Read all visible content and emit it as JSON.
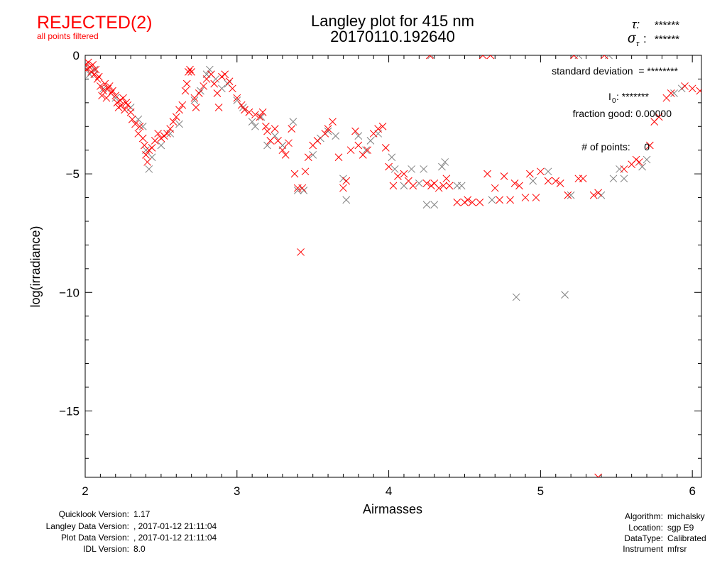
{
  "header": {
    "status": "REJECTED(2)",
    "status_note": "all points filtered",
    "tau_label": "τ:",
    "tau_value": "******",
    "sigma_tau_label": "σ",
    "sigma_tau_sub": "τ",
    "sigma_tau_value": "******"
  },
  "annotations": {
    "std_dev": "standard deviation  = ********",
    "i0_label": "I",
    "i0_sub": "0",
    "i0_value": ": *******",
    "fraction_good": "fraction good: 0.00000",
    "num_points": "# of points:     0"
  },
  "footer": {
    "left_labels": [
      "Quicklook Version:",
      "Langley Data Version:",
      "Plot Data Version:",
      "IDL Version:"
    ],
    "left_values": [
      "1.17",
      ", 2017-01-12 21:11:04",
      ", 2017-01-12 21:11:04",
      "8.0"
    ],
    "right_labels": [
      "Algorithm:",
      "Location:",
      "DataType:",
      "Instrument"
    ],
    "right_values": [
      "michalsky",
      "sgp E9",
      "Calibrated",
      "mfrsr"
    ]
  },
  "colors": {
    "rejected": "#ff0000",
    "other": "#808080",
    "axis": "#000000"
  },
  "chart_data": {
    "type": "scatter",
    "title": "Langley plot for 415 nm",
    "subtitle": "20170110.192640",
    "xlabel": "Airmasses",
    "ylabel": "log(irradiance)",
    "xlim": [
      2,
      6.06
    ],
    "ylim": [
      -17.8,
      0
    ],
    "xticks": [
      2,
      3,
      4,
      5,
      6
    ],
    "xtick_labels": [
      "2",
      "3",
      "4",
      "5",
      "6"
    ],
    "yticks": [
      0,
      -5,
      -10,
      -15
    ],
    "ytick_labels": [
      "0",
      "−5",
      "−10",
      "−15"
    ],
    "grid": false,
    "marker": "x",
    "series": [
      {
        "name": "gray points",
        "color": "#808080",
        "points": [
          [
            2.0,
            -0.5
          ],
          [
            2.03,
            -0.8
          ],
          [
            2.06,
            -0.6
          ],
          [
            2.12,
            -1.4
          ],
          [
            2.2,
            -1.8
          ],
          [
            2.3,
            -2.2
          ],
          [
            2.35,
            -2.7
          ],
          [
            2.38,
            -3.0
          ],
          [
            2.4,
            -4.0
          ],
          [
            2.42,
            -4.8
          ],
          [
            2.44,
            -4.3
          ],
          [
            2.5,
            -3.8
          ],
          [
            2.56,
            -3.3
          ],
          [
            2.62,
            -2.9
          ],
          [
            2.72,
            -1.9
          ],
          [
            2.76,
            -1.5
          ],
          [
            2.8,
            -0.8
          ],
          [
            2.82,
            -0.6
          ],
          [
            2.86,
            -1.0
          ],
          [
            2.9,
            -1.4
          ],
          [
            2.94,
            -1.2
          ],
          [
            3.0,
            -1.9
          ],
          [
            3.04,
            -2.2
          ],
          [
            3.1,
            -2.8
          ],
          [
            3.12,
            -3.0
          ],
          [
            3.16,
            -2.6
          ],
          [
            3.2,
            -3.8
          ],
          [
            3.25,
            -3.4
          ],
          [
            3.3,
            -3.8
          ],
          [
            3.37,
            -2.8
          ],
          [
            3.4,
            -5.7
          ],
          [
            3.44,
            -5.7
          ],
          [
            3.5,
            -4.2
          ],
          [
            3.55,
            -3.5
          ],
          [
            3.6,
            -3.2
          ],
          [
            3.65,
            -3.4
          ],
          [
            3.7,
            -5.2
          ],
          [
            3.72,
            -6.1
          ],
          [
            3.8,
            -3.4
          ],
          [
            3.85,
            -4.0
          ],
          [
            3.88,
            -3.6
          ],
          [
            3.93,
            -3.3
          ],
          [
            4.02,
            -4.3
          ],
          [
            4.04,
            -4.8
          ],
          [
            4.1,
            -5.5
          ],
          [
            4.15,
            -4.8
          ],
          [
            4.2,
            -5.4
          ],
          [
            4.23,
            -4.8
          ],
          [
            4.25,
            -6.3
          ],
          [
            4.3,
            -6.3
          ],
          [
            4.35,
            -4.7
          ],
          [
            4.37,
            -4.5
          ],
          [
            4.45,
            -5.5
          ],
          [
            4.48,
            -5.5
          ],
          [
            4.68,
            -6.1
          ],
          [
            4.84,
            -10.2
          ],
          [
            4.95,
            -5.3
          ],
          [
            5.05,
            -4.9
          ],
          [
            5.16,
            -10.1
          ],
          [
            5.2,
            -5.9
          ],
          [
            5.4,
            -5.9
          ],
          [
            5.48,
            -5.2
          ],
          [
            5.52,
            -4.8
          ],
          [
            5.55,
            -5.2
          ],
          [
            5.67,
            -4.7
          ],
          [
            5.7,
            -4.4
          ],
          [
            5.88,
            -1.6
          ],
          [
            5.93,
            -1.4
          ],
          [
            4.28,
            0
          ],
          [
            5.25,
            0
          ],
          [
            5.45,
            0
          ]
        ]
      },
      {
        "name": "rejected points",
        "color": "#ff0000",
        "points": [
          [
            2.0,
            -0.4
          ],
          [
            2.01,
            -0.6
          ],
          [
            2.02,
            -0.3
          ],
          [
            2.03,
            -0.5
          ],
          [
            2.04,
            -0.7
          ],
          [
            2.05,
            -0.4
          ],
          [
            2.06,
            -0.8
          ],
          [
            2.07,
            -0.6
          ],
          [
            2.08,
            -1.0
          ],
          [
            2.09,
            -0.9
          ],
          [
            2.1,
            -1.3
          ],
          [
            2.11,
            -1.7
          ],
          [
            2.12,
            -1.5
          ],
          [
            2.13,
            -1.2
          ],
          [
            2.14,
            -1.8
          ],
          [
            2.15,
            -1.4
          ],
          [
            2.16,
            -1.3
          ],
          [
            2.17,
            -1.6
          ],
          [
            2.18,
            -1.5
          ],
          [
            2.2,
            -1.7
          ],
          [
            2.21,
            -2.0
          ],
          [
            2.22,
            -2.2
          ],
          [
            2.23,
            -1.9
          ],
          [
            2.24,
            -2.1
          ],
          [
            2.25,
            -1.8
          ],
          [
            2.26,
            -2.3
          ],
          [
            2.27,
            -2.0
          ],
          [
            2.28,
            -2.1
          ],
          [
            2.3,
            -2.4
          ],
          [
            2.31,
            -2.7
          ],
          [
            2.33,
            -2.9
          ],
          [
            2.35,
            -3.3
          ],
          [
            2.36,
            -3.0
          ],
          [
            2.38,
            -3.5
          ],
          [
            2.39,
            -3.8
          ],
          [
            2.4,
            -4.2
          ],
          [
            2.41,
            -4.5
          ],
          [
            2.42,
            -4.0
          ],
          [
            2.44,
            -3.9
          ],
          [
            2.46,
            -3.6
          ],
          [
            2.48,
            -3.3
          ],
          [
            2.5,
            -3.5
          ],
          [
            2.52,
            -3.4
          ],
          [
            2.54,
            -3.3
          ],
          [
            2.56,
            -3.1
          ],
          [
            2.58,
            -2.8
          ],
          [
            2.6,
            -2.6
          ],
          [
            2.62,
            -2.3
          ],
          [
            2.64,
            -2.1
          ],
          [
            2.66,
            -1.5
          ],
          [
            2.67,
            -1.2
          ],
          [
            2.68,
            -0.7
          ],
          [
            2.69,
            -0.6
          ],
          [
            2.7,
            -0.7
          ],
          [
            2.72,
            -1.8
          ],
          [
            2.73,
            -2.2
          ],
          [
            2.75,
            -1.6
          ],
          [
            2.78,
            -1.3
          ],
          [
            2.8,
            -1.0
          ],
          [
            2.83,
            -0.8
          ],
          [
            2.85,
            -1.2
          ],
          [
            2.87,
            -1.6
          ],
          [
            2.88,
            -2.2
          ],
          [
            2.9,
            -0.9
          ],
          [
            2.92,
            -0.8
          ],
          [
            2.95,
            -1.1
          ],
          [
            2.97,
            -1.4
          ],
          [
            3.0,
            -1.8
          ],
          [
            3.03,
            -2.1
          ],
          [
            3.05,
            -2.3
          ],
          [
            3.08,
            -2.4
          ],
          [
            3.12,
            -2.5
          ],
          [
            3.15,
            -2.6
          ],
          [
            3.17,
            -2.4
          ],
          [
            3.19,
            -3.0
          ],
          [
            3.2,
            -3.2
          ],
          [
            3.22,
            -3.6
          ],
          [
            3.25,
            -3.1
          ],
          [
            3.27,
            -3.6
          ],
          [
            3.3,
            -4.0
          ],
          [
            3.32,
            -4.2
          ],
          [
            3.34,
            -3.7
          ],
          [
            3.36,
            -3.1
          ],
          [
            3.38,
            -5.0
          ],
          [
            3.4,
            -5.6
          ],
          [
            3.42,
            -8.3
          ],
          [
            3.43,
            -5.6
          ],
          [
            3.45,
            -4.9
          ],
          [
            3.47,
            -4.3
          ],
          [
            3.5,
            -3.8
          ],
          [
            3.53,
            -3.6
          ],
          [
            3.58,
            -3.3
          ],
          [
            3.6,
            -3.1
          ],
          [
            3.63,
            -2.8
          ],
          [
            3.67,
            -4.3
          ],
          [
            3.7,
            -5.6
          ],
          [
            3.72,
            -5.3
          ],
          [
            3.75,
            -4.0
          ],
          [
            3.78,
            -3.2
          ],
          [
            3.8,
            -3.8
          ],
          [
            3.83,
            -4.2
          ],
          [
            3.86,
            -4.0
          ],
          [
            3.9,
            -3.3
          ],
          [
            3.93,
            -3.1
          ],
          [
            3.96,
            -3.0
          ],
          [
            3.98,
            -3.9
          ],
          [
            4.0,
            -4.7
          ],
          [
            4.03,
            -5.5
          ],
          [
            4.06,
            -5.1
          ],
          [
            4.1,
            -5.0
          ],
          [
            4.13,
            -5.3
          ],
          [
            4.16,
            -5.5
          ],
          [
            4.25,
            -5.4
          ],
          [
            4.28,
            -5.5
          ],
          [
            4.3,
            -5.4
          ],
          [
            4.33,
            -5.6
          ],
          [
            4.36,
            -5.5
          ],
          [
            4.38,
            -5.2
          ],
          [
            4.4,
            -5.5
          ],
          [
            4.45,
            -6.2
          ],
          [
            4.5,
            -6.2
          ],
          [
            4.52,
            -6.1
          ],
          [
            4.55,
            -6.2
          ],
          [
            4.6,
            -6.2
          ],
          [
            4.65,
            -5.0
          ],
          [
            4.7,
            -5.6
          ],
          [
            4.73,
            -6.1
          ],
          [
            4.76,
            -5.1
          ],
          [
            4.8,
            -6.1
          ],
          [
            4.83,
            -5.4
          ],
          [
            4.86,
            -5.5
          ],
          [
            4.9,
            -6.0
          ],
          [
            4.93,
            -5.0
          ],
          [
            4.97,
            -6.0
          ],
          [
            5.0,
            -4.9
          ],
          [
            5.05,
            -5.3
          ],
          [
            5.1,
            -5.3
          ],
          [
            5.13,
            -5.4
          ],
          [
            5.18,
            -5.9
          ],
          [
            5.25,
            -5.2
          ],
          [
            5.28,
            -5.2
          ],
          [
            5.35,
            -5.9
          ],
          [
            5.38,
            -5.8
          ],
          [
            5.38,
            -17.8
          ],
          [
            5.55,
            -4.8
          ],
          [
            5.6,
            -4.6
          ],
          [
            5.63,
            -4.4
          ],
          [
            5.65,
            -4.5
          ],
          [
            5.72,
            -3.8
          ],
          [
            5.75,
            -2.8
          ],
          [
            5.78,
            -2.6
          ],
          [
            5.83,
            -1.8
          ],
          [
            5.86,
            -1.6
          ],
          [
            5.95,
            -1.3
          ],
          [
            6.0,
            -1.4
          ],
          [
            6.05,
            -1.5
          ],
          [
            4.27,
            0
          ],
          [
            4.62,
            0
          ],
          [
            4.67,
            0
          ],
          [
            5.22,
            0
          ],
          [
            5.42,
            0
          ]
        ]
      }
    ]
  }
}
